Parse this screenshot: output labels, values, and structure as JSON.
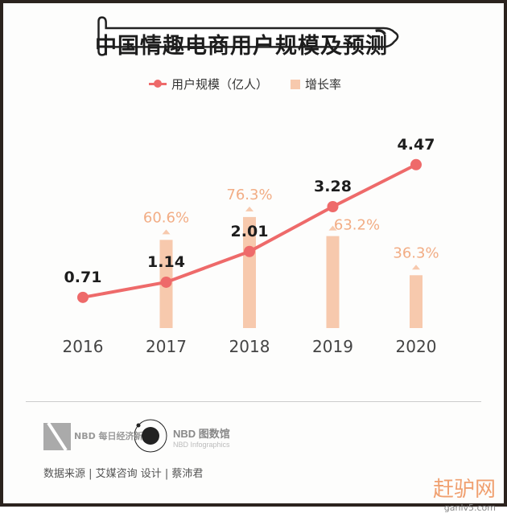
{
  "chart_data": {
    "type": "bar+line",
    "title": "中国情趣电商用户规模及预测",
    "categories": [
      "2016",
      "2017",
      "2018",
      "2019",
      "2020"
    ],
    "series": [
      {
        "name": "用户规模（亿人）",
        "type": "line",
        "color": "#ee6a6a",
        "values": [
          0.71,
          1.14,
          2.01,
          3.28,
          4.47
        ],
        "labels": [
          "0.71",
          "1.14",
          "2.01",
          "3.28",
          "4.47"
        ]
      },
      {
        "name": "增长率",
        "type": "bar",
        "color": "#f7c9ad",
        "values": [
          null,
          60.6,
          76.3,
          63.2,
          36.3
        ],
        "labels": [
          "",
          "60.6%",
          "76.3%",
          "63.2%",
          "36.3%"
        ]
      }
    ],
    "legend": "top",
    "grid": false
  },
  "footer": {
    "logo1": "NBD 每日经济新闻",
    "logo2_main": "NBD 图数馆",
    "logo2_sub": "NBD Infographics",
    "source": "数据来源 | 艾媒咨询  设计 | 蔡沛君"
  },
  "watermark": {
    "text": "赶驴网",
    "url_text": "ganlv5.com"
  }
}
